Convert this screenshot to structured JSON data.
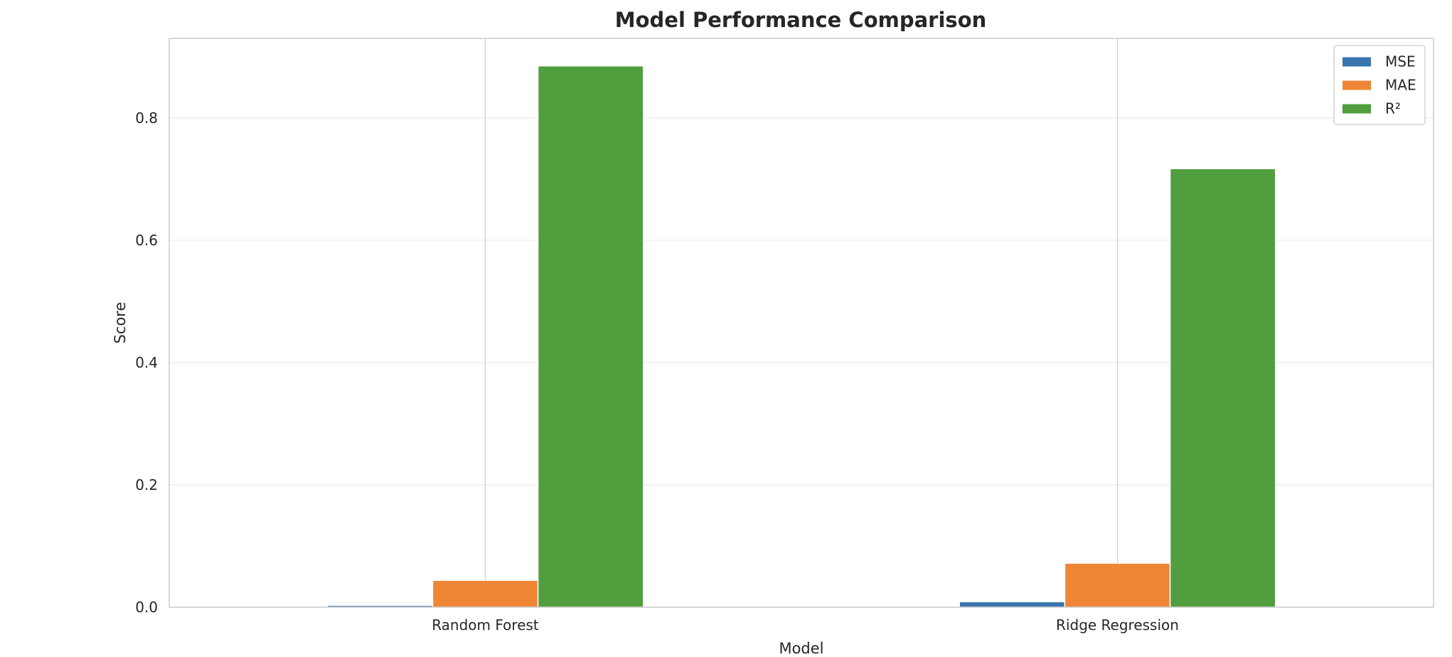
{
  "chart_data": {
    "type": "bar",
    "title": "Model Performance Comparison",
    "xlabel": "Model",
    "ylabel": "Score",
    "categories": [
      "Random Forest",
      "Ridge Regression"
    ],
    "series": [
      {
        "name": "MSE",
        "color": "#3a75b0",
        "values": [
          0.003,
          0.009
        ]
      },
      {
        "name": "MAE",
        "color": "#ee8635",
        "values": [
          0.044,
          0.072
        ]
      },
      {
        "name": "R²",
        "color": "#519e3e",
        "values": [
          0.885,
          0.717
        ]
      }
    ],
    "ylim": [
      0,
      0.93
    ],
    "yticks": [
      0.0,
      0.2,
      0.4,
      0.6,
      0.8
    ],
    "ytick_labels": [
      "0.0",
      "0.2",
      "0.4",
      "0.6",
      "0.8"
    ],
    "grid": true,
    "legend_position": "top-right"
  }
}
